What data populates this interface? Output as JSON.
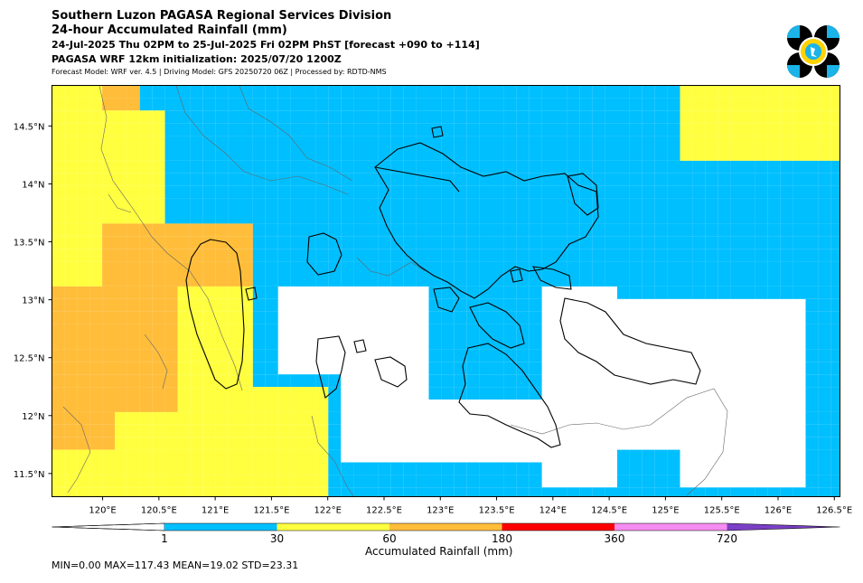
{
  "header": {
    "line1": "Southern Luzon PAGASA Regional Services Division",
    "line2": "24-hour Accumulated Rainfall (mm)",
    "line3": "24-Jul-2025 Thu 02PM to 25-Jul-2025 Fri 02PM PhST [forecast +090 to +114]",
    "line4": "PAGASA WRF 12km initialization: 2025/07/20 1200Z",
    "line5": "Forecast Model: WRF ver. 4.5 | Driving Model: GFS 20250720 06Z | Processed by: RDTD-NMS"
  },
  "logo": {
    "name": "pagasa-logo",
    "colors": [
      "#000000",
      "#1ab4e8",
      "#ffd200"
    ]
  },
  "map": {
    "lon_range": [
      119.55,
      126.55
    ],
    "lat_range": [
      11.3,
      14.85
    ],
    "x_ticks": [
      "120°E",
      "120.5°E",
      "121°E",
      "121.5°E",
      "122°E",
      "122.5°E",
      "123°E",
      "123.5°E",
      "124°E",
      "124.5°E",
      "125°E",
      "125.5°E",
      "126°E",
      "126.5°E"
    ],
    "x_tick_values": [
      120,
      120.5,
      121,
      121.5,
      122,
      122.5,
      123,
      123.5,
      124,
      124.5,
      125,
      125.5,
      126,
      126.5
    ],
    "y_ticks": [
      "11.5°N",
      "12°N",
      "12.5°N",
      "13°N",
      "13.5°N",
      "14°N",
      "14.5°N"
    ],
    "y_tick_values": [
      11.5,
      12,
      12.5,
      13,
      13.5,
      14,
      14.5
    ]
  },
  "colorbar": {
    "title": "Accumulated Rainfall (mm)",
    "labels": [
      "1",
      "30",
      "60",
      "180",
      "360",
      "720"
    ],
    "colors": [
      "#00bfff",
      "#ffff40",
      "#ffbd3a",
      "#ff0000",
      "#f58cf0",
      "#7b3fc6"
    ]
  },
  "stats": {
    "text": "MIN=0.00   MAX=117.43   MEAN=19.02   STD=23.31"
  }
}
